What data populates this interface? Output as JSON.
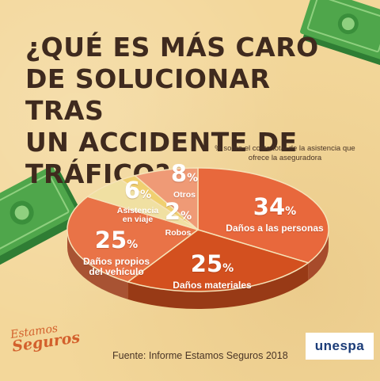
{
  "title_lines": [
    "¿QUÉ ES MÁS CARO",
    "DE SOLUCIONAR TRAS",
    "UN ACCIDENTE DE",
    "TRÁFICO?"
  ],
  "subtitle": "% sobre el coste total de la asistencia que ofrece la aseguradora",
  "source": "Fuente: Informe Estamos Seguros 2018",
  "brand": {
    "line1": "Estamos",
    "line2": "Seguros"
  },
  "logo_text": "unespa",
  "colors": {
    "background": "#f3d79a",
    "title": "#3f2a1e",
    "danos_personas": "#e8683c",
    "danos_materiales": "#d3501f",
    "danos_propios": "#e97347",
    "asistencia": "#f0e0a2",
    "robos": "#f0d070",
    "otros": "#ef9a76",
    "money": "#4fa64b"
  },
  "chart_data": {
    "type": "pie",
    "title": "¿QUÉ ES MÁS CARO DE SOLUCIONAR TRAS UN ACCIDENTE DE TRÁFICO?",
    "subtitle": "% sobre el coste total de la asistencia que ofrece la aseguradora",
    "unit": "%",
    "slices": [
      {
        "label": "Daños a las personas",
        "value": 34
      },
      {
        "label": "Daños materiales",
        "value": 25
      },
      {
        "label": "Daños propios del vehículo",
        "value": 25
      },
      {
        "label": "Asistencia en viaje",
        "value": 6
      },
      {
        "label": "Robos",
        "value": 2
      },
      {
        "label": "Otros",
        "value": 8
      }
    ]
  }
}
